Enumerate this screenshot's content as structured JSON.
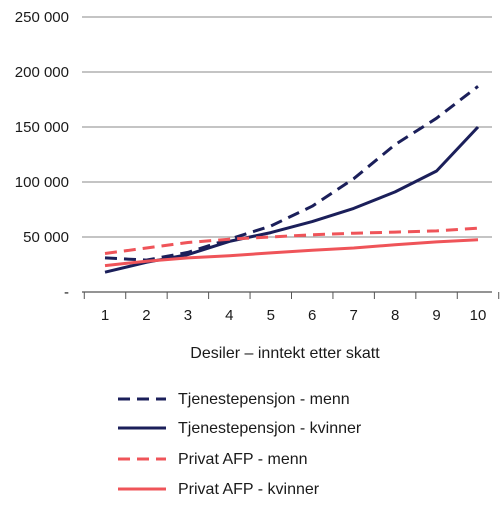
{
  "chart_data": {
    "type": "line",
    "title": "",
    "xlabel": "Desiler – inntekt etter skatt",
    "ylabel": "",
    "x": [
      1,
      2,
      3,
      4,
      5,
      6,
      7,
      8,
      9,
      10
    ],
    "x_tick_labels": [
      "1",
      "2",
      "3",
      "4",
      "5",
      "6",
      "7",
      "8",
      "9",
      "10"
    ],
    "y_ticks": [
      0,
      50000,
      100000,
      150000,
      200000,
      250000
    ],
    "y_tick_labels": [
      "-",
      "50 000",
      "100 000",
      "150 000",
      "200 000",
      "250 000"
    ],
    "ylim": [
      0,
      250000
    ],
    "grid": "horizontal",
    "legend_position": "bottom",
    "series": [
      {
        "name": "Tjenestepensjon - menn",
        "color": "#1b1f5a",
        "dash": "dashed",
        "values": [
          31000,
          29000,
          36000,
          48000,
          60000,
          78000,
          103000,
          134000,
          158000,
          187000
        ]
      },
      {
        "name": "Tjenestepensjon - kvinner",
        "color": "#1b1f5a",
        "dash": "solid",
        "values": [
          18000,
          27000,
          34000,
          46000,
          54000,
          64000,
          76000,
          91000,
          110000,
          150000
        ]
      },
      {
        "name": "Privat AFP - menn",
        "color": "#ef5459",
        "dash": "dashed",
        "values": [
          35000,
          40000,
          45000,
          48000,
          50000,
          52000,
          53500,
          54500,
          55500,
          58000
        ]
      },
      {
        "name": "Privat AFP - kvinner",
        "color": "#ef5459",
        "dash": "solid",
        "values": [
          24000,
          28000,
          31000,
          33000,
          35500,
          38000,
          40000,
          43000,
          45500,
          47500
        ]
      }
    ]
  }
}
